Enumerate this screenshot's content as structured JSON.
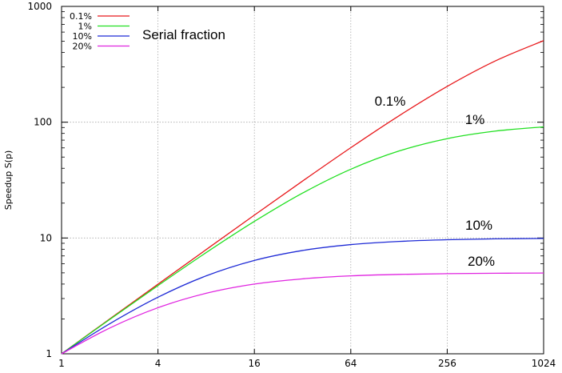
{
  "chart_data": {
    "type": "line",
    "x_scale": "log2",
    "y_scale": "log10",
    "xlim": [
      1,
      1024
    ],
    "ylim": [
      1,
      1000
    ],
    "x_ticks": [
      "1",
      "4",
      "16",
      "64",
      "256",
      "1024"
    ],
    "y_ticks": [
      "1",
      "10",
      "100",
      "1000"
    ],
    "ylabel": "Speedup S(p)",
    "xlabel": "",
    "grid": true,
    "legend": {
      "placement": "top-left",
      "title": "Serial fraction"
    },
    "x": [
      1,
      2,
      4,
      8,
      16,
      32,
      64,
      128,
      256,
      512,
      1024
    ],
    "series": [
      {
        "name": "0.1%",
        "label": "0.1%",
        "color": "#e8191c",
        "serial_fraction": 0.001,
        "values": [
          1,
          2.0,
          3.99,
          7.94,
          15.76,
          31.04,
          60.25,
          113.6,
          203.9,
          338.6,
          506.2
        ]
      },
      {
        "name": "1%",
        "label": "1%",
        "color": "#22e022",
        "serial_fraction": 0.01,
        "values": [
          1,
          1.98,
          3.88,
          7.48,
          13.91,
          24.43,
          39.26,
          56.39,
          72.11,
          83.79,
          91.18
        ]
      },
      {
        "name": "10%",
        "label": "10%",
        "color": "#1f2bd6",
        "serial_fraction": 0.1,
        "values": [
          1,
          1.82,
          3.08,
          4.71,
          6.4,
          7.8,
          8.77,
          9.34,
          9.66,
          9.83,
          9.91
        ]
      },
      {
        "name": "20%",
        "label": "20%",
        "color": "#e024e0",
        "serial_fraction": 0.2,
        "values": [
          1,
          1.67,
          2.5,
          3.33,
          4.0,
          4.44,
          4.71,
          4.85,
          4.92,
          4.96,
          4.98
        ]
      }
    ]
  }
}
